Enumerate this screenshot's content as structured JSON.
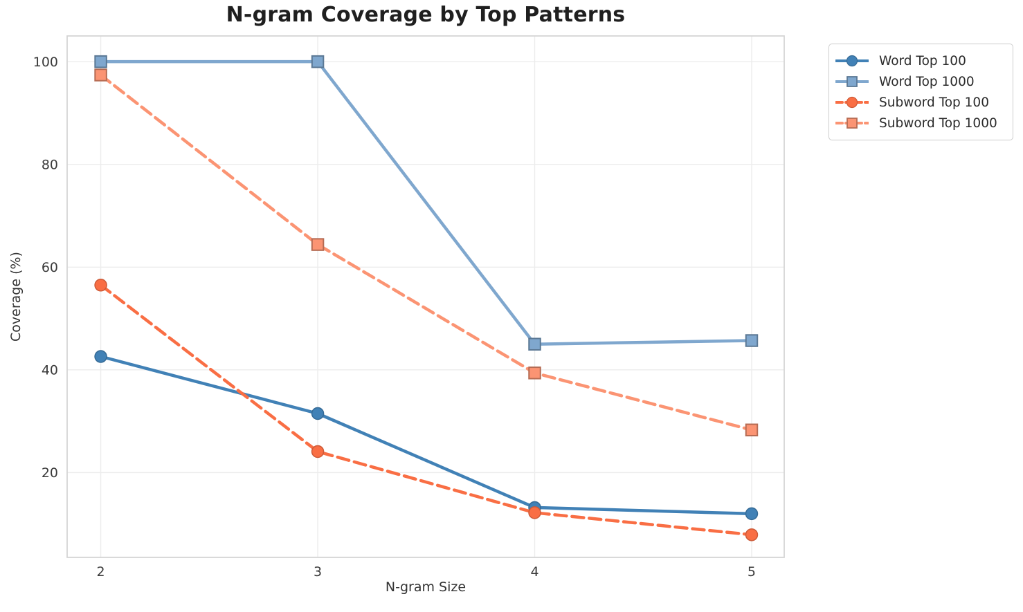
{
  "chart_data": {
    "type": "line",
    "title": "N-gram Coverage by Top Patterns",
    "xlabel": "N-gram Size",
    "ylabel": "Coverage (%)",
    "x": [
      2,
      3,
      4,
      5
    ],
    "series": [
      {
        "name": "Word Top 100",
        "values": [
          42.6,
          31.5,
          13.2,
          12.0
        ],
        "color": "#4181b6",
        "marker": "circle",
        "dash": "solid"
      },
      {
        "name": "Word Top 1000",
        "values": [
          100.0,
          100.0,
          45.0,
          45.7
        ],
        "color": "#7fa7ce",
        "marker": "square",
        "dash": "solid"
      },
      {
        "name": "Subword Top 100",
        "values": [
          56.5,
          24.1,
          12.2,
          7.9
        ],
        "color": "#f96e44",
        "marker": "circle",
        "dash": "dashed"
      },
      {
        "name": "Subword Top 1000",
        "values": [
          97.4,
          64.4,
          39.4,
          28.3
        ],
        "color": "#fb9473",
        "marker": "square",
        "dash": "dashed"
      }
    ],
    "xticks": [
      2,
      3,
      4,
      5
    ],
    "yticks": [
      20,
      40,
      60,
      80,
      100
    ],
    "xlim": [
      1.845,
      5.15
    ],
    "ylim": [
      3.5,
      105
    ],
    "grid": true,
    "legend_position": "outside-top-right",
    "colors": {
      "grid": "#ececec",
      "spine": "#d5d5d5",
      "tick_text": "#3a3a3a",
      "title_text": "#1f1f1f"
    }
  }
}
